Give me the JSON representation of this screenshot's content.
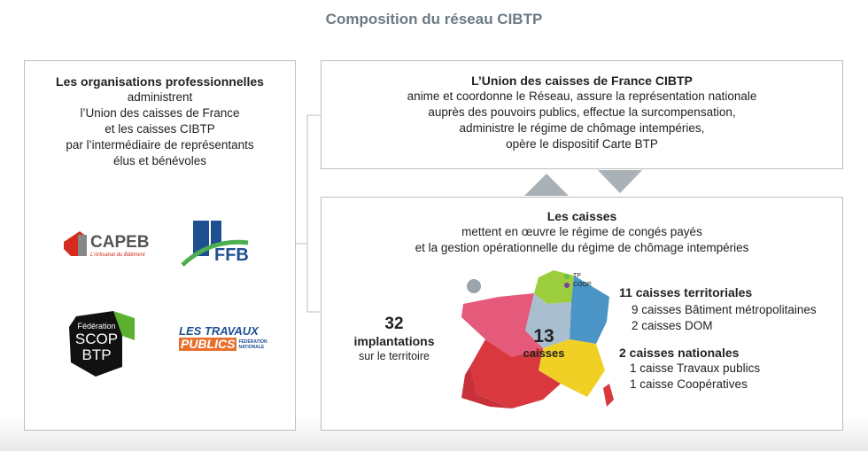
{
  "title": "Composition du réseau CIBTP",
  "left_box": {
    "heading": "Les organisations professionnelles",
    "lines": [
      "administrent",
      "l’Union des caisses de France",
      "et les caisses CIBTP",
      "par l’intermédiaire de représentants",
      "élus et bénévoles"
    ],
    "logos": {
      "capeb": {
        "name": "CAPEB",
        "tagline": "L’Artisanat du Bâtiment"
      },
      "ffb": {
        "name": "FFB"
      },
      "scop": {
        "lines": [
          "Fédération",
          "SCOP",
          "BTP"
        ]
      },
      "tp": {
        "lines": [
          "LES TRAVAUX",
          "PUBLICS"
        ],
        "tagline": [
          "FÉDÉRATION",
          "NATIONALE"
        ]
      }
    }
  },
  "union_box": {
    "heading": "L’Union des caisses de France CIBTP",
    "lines": [
      "anime et coordonne le Réseau, assure la représentation nationale",
      "auprès des pouvoirs publics, effectue la surcompensation,",
      "administre le régime de chômage intempéries,",
      "opère le dispositif Carte BTP"
    ]
  },
  "caisses_box": {
    "heading": "Les caisses",
    "lines": [
      "mettent en œuvre le régime de congés payés",
      "et la gestion opérationnelle du régime de chômage intempéries"
    ],
    "legend": [
      "TP",
      "COOP."
    ],
    "implantations": {
      "number": "32",
      "label": "implantations",
      "sub": "sur le territoire"
    },
    "center": {
      "number": "13",
      "label": "caisses"
    },
    "groups": [
      {
        "heading": "11 caisses territoriales",
        "items": [
          "9 caisses Bâtiment métropolitaines",
          "2 caisses DOM"
        ]
      },
      {
        "heading": "2 caisses nationales",
        "items": [
          "1 caisse Travaux publics",
          "1 caisse Coopératives"
        ]
      }
    ]
  }
}
